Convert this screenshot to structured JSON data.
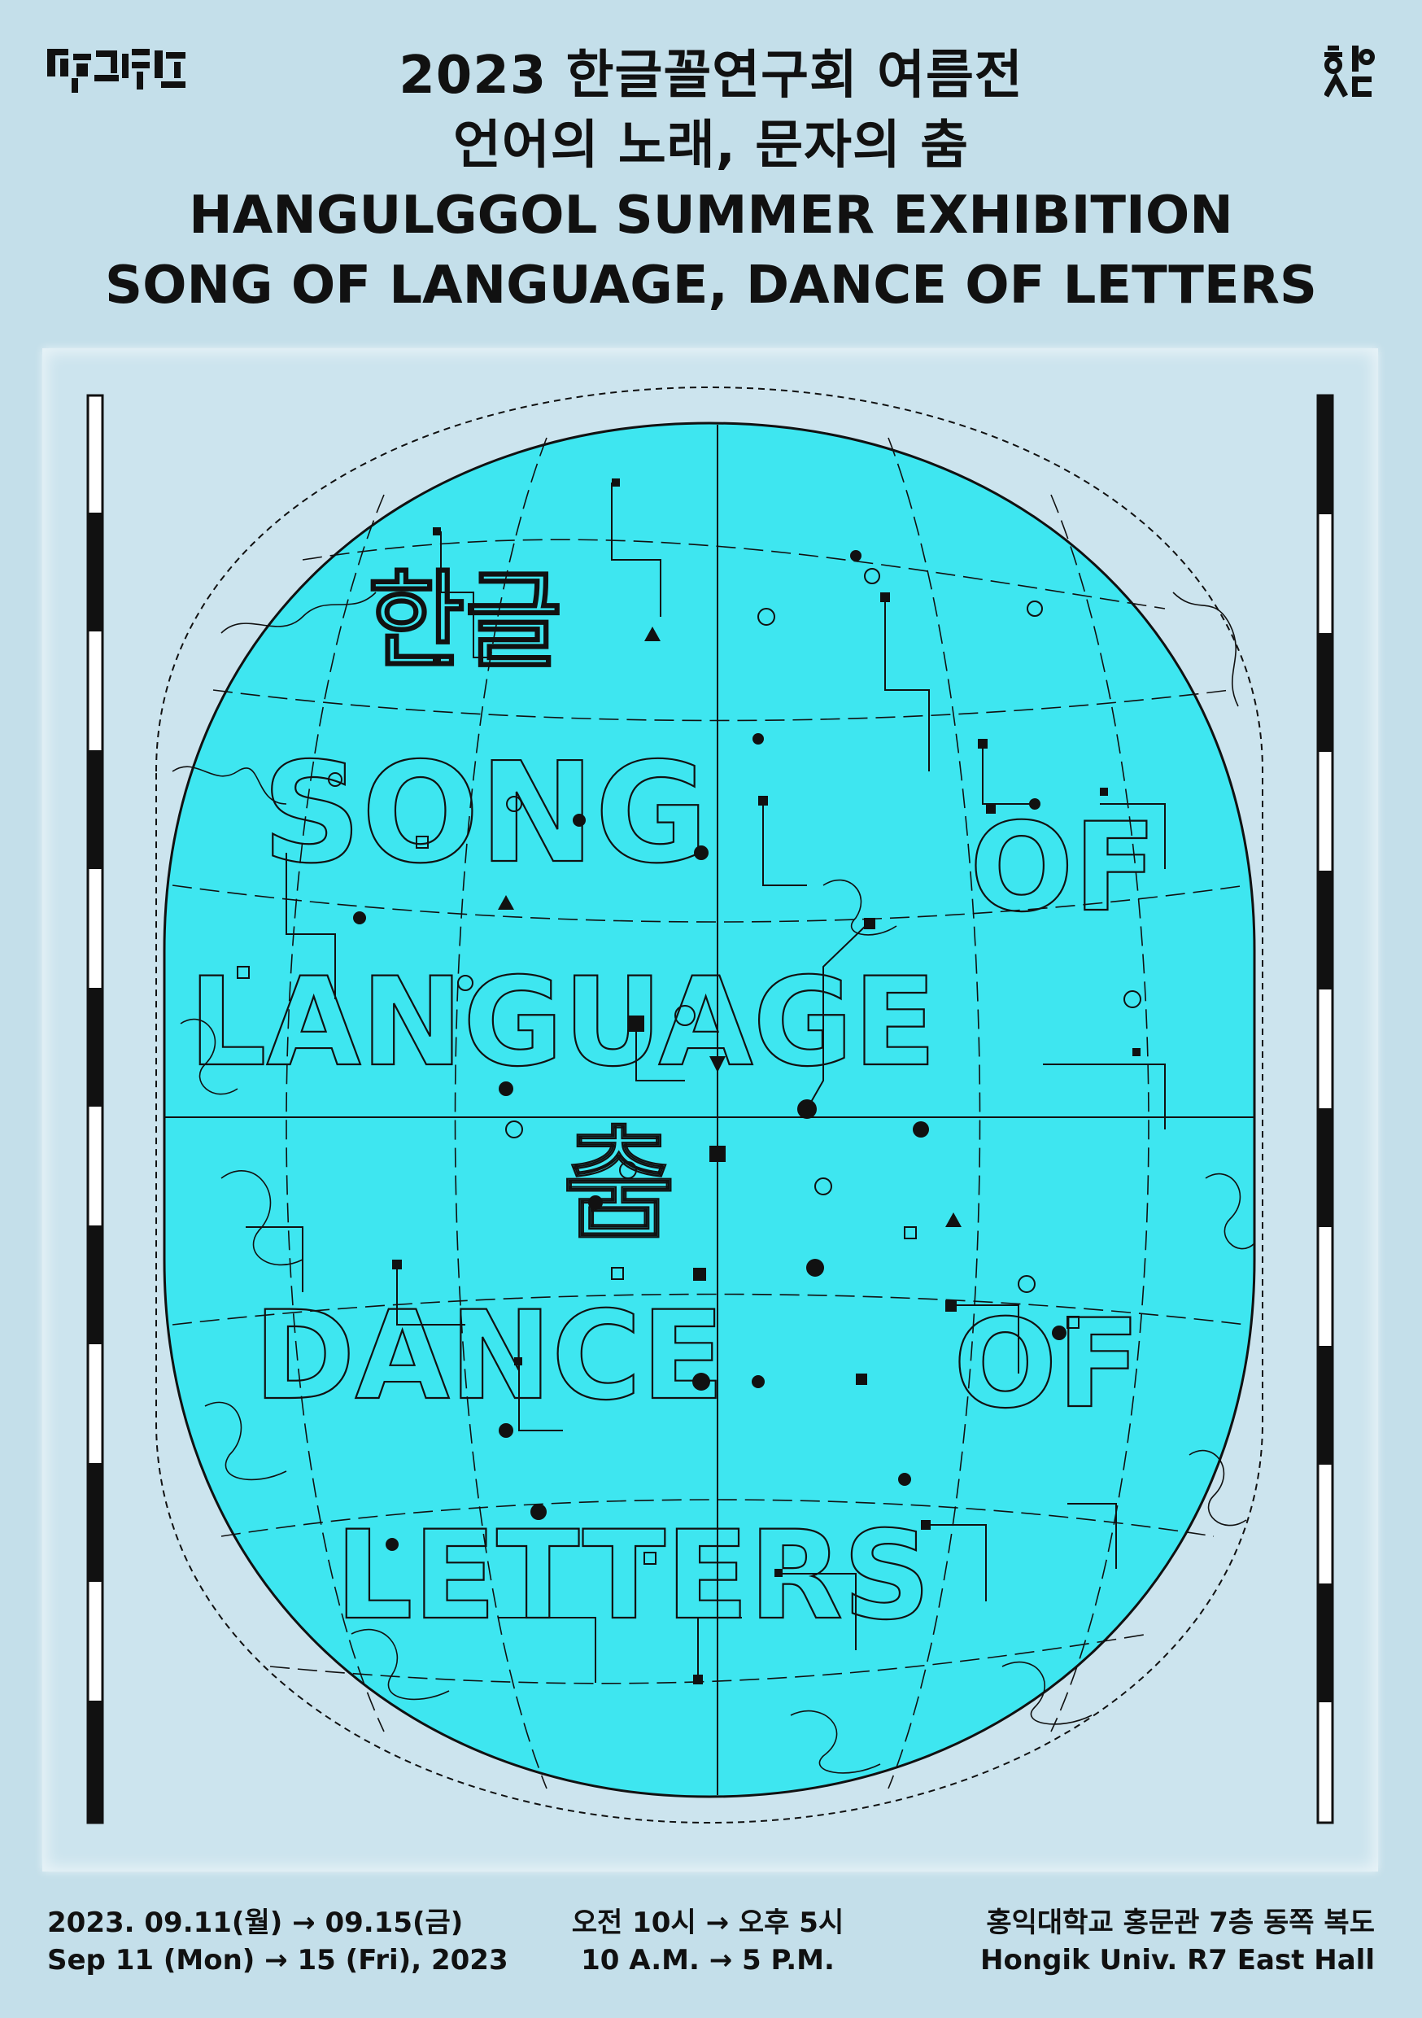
{
  "header": {
    "logo_left_icon": "hangulggol-logo",
    "logo_right_icon": "hongik-design-logo",
    "title_kr_1": "2023 한글꼴연구회 여름전",
    "title_kr_2": "언어의 노래, 문자의 춤",
    "title_en_1": "HANGULGGOL SUMMER EXHIBITION",
    "title_en_2": "SONG OF LANGUAGE, DANCE OF LETTERS"
  },
  "artwork": {
    "globe_lettering": [
      "한글",
      "SONG",
      "OF",
      "LANGUAGE",
      "춤",
      "DANCE",
      "OF",
      "LETTERS"
    ],
    "colors": {
      "globe": "#3ee6f0",
      "background": "#c4dfea",
      "ink": "#111111"
    }
  },
  "footer": {
    "date_kr": "2023. 09.11(월) → 09.15(금)",
    "date_en": "Sep 11 (Mon) → 15 (Fri), 2023",
    "time_kr": "오전 10시 → 오후 5시",
    "time_en": "10 A.M. → 5 P.M.",
    "venue_kr": "홍익대학교 홍문관 7층 동쪽 복도",
    "venue_en": "Hongik Univ. R7 East Hall"
  }
}
